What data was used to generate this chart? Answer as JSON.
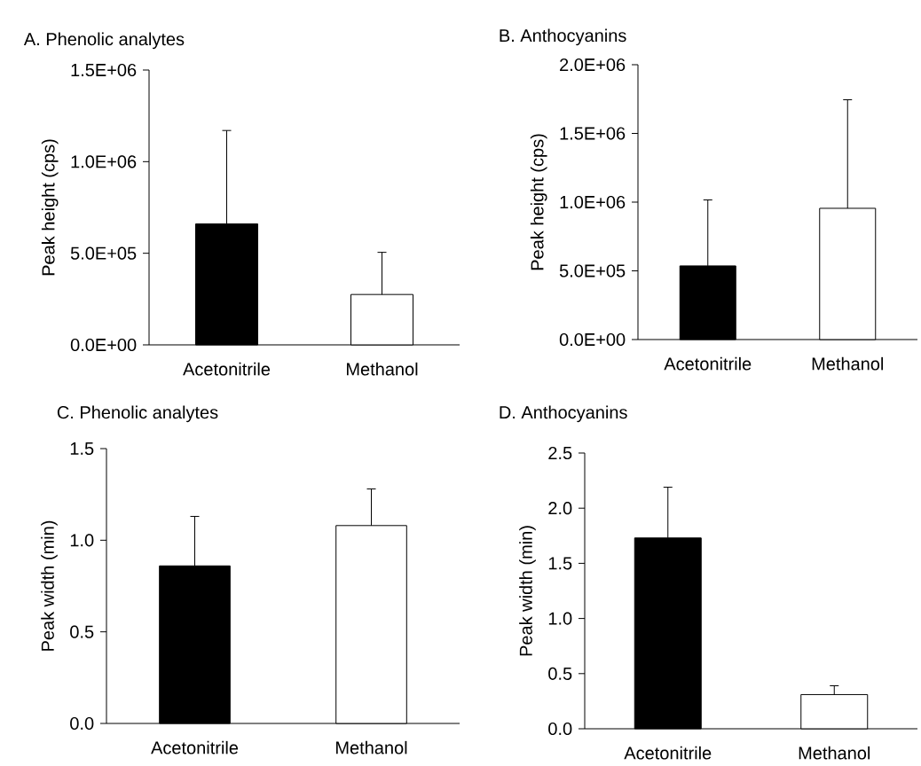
{
  "chart_data": [
    {
      "type": "bar",
      "title": "A. Phenolic analytes",
      "ylabel": "Peak height (cps)",
      "categories": [
        "Acetonitrile",
        "Methanol"
      ],
      "values": [
        660000,
        275000
      ],
      "colors": [
        "#000000",
        "#ffffff"
      ],
      "errors": [
        510000,
        230000
      ],
      "ylim": [
        0,
        1500000
      ],
      "yticks": [
        {
          "value": 0,
          "label": "0.0E+00"
        },
        {
          "value": 500000,
          "label": "5.0E+05"
        },
        {
          "value": 1000000,
          "label": "1.0E+06"
        },
        {
          "value": 1500000,
          "label": "1.5E+06"
        }
      ]
    },
    {
      "type": "bar",
      "title": "B. Anthocyanins",
      "ylabel": "Peak height (cps)",
      "categories": [
        "Acetonitrile",
        "Methanol"
      ],
      "values": [
        536000,
        955000
      ],
      "colors": [
        "#000000",
        "#ffffff"
      ],
      "errors": [
        480000,
        790000
      ],
      "ylim": [
        0,
        2000000
      ],
      "yticks": [
        {
          "value": 0,
          "label": "0.0E+00"
        },
        {
          "value": 500000,
          "label": "5.0E+05"
        },
        {
          "value": 1000000,
          "label": "1.0E+06"
        },
        {
          "value": 1500000,
          "label": "1.5E+06"
        },
        {
          "value": 2000000,
          "label": "2.0E+06"
        }
      ]
    },
    {
      "type": "bar",
      "title": "C. Phenolic analytes",
      "ylabel": "Peak width (min)",
      "categories": [
        "Acetonitrile",
        "Methanol"
      ],
      "values": [
        0.86,
        1.08
      ],
      "colors": [
        "#000000",
        "#ffffff"
      ],
      "errors": [
        0.27,
        0.2
      ],
      "ylim": [
        0,
        1.5
      ],
      "yticks": [
        {
          "value": 0,
          "label": "0.0"
        },
        {
          "value": 0.5,
          "label": "0.5"
        },
        {
          "value": 1,
          "label": "1.0"
        },
        {
          "value": 1.5,
          "label": "1.5"
        }
      ]
    },
    {
      "type": "bar",
      "title": "D. Anthocyanins",
      "ylabel": "Peak width (min)",
      "categories": [
        "Acetonitrile",
        "Methanol"
      ],
      "values": [
        1.73,
        0.31
      ],
      "colors": [
        "#000000",
        "#ffffff"
      ],
      "errors": [
        0.46,
        0.08
      ],
      "ylim": [
        0,
        2.5
      ],
      "yticks": [
        {
          "value": 0,
          "label": "0.0"
        },
        {
          "value": 0.5,
          "label": "0.5"
        },
        {
          "value": 1,
          "label": "1.0"
        },
        {
          "value": 1.5,
          "label": "1.5"
        },
        {
          "value": 2,
          "label": "2.0"
        },
        {
          "value": 2.5,
          "label": "2.5"
        }
      ]
    }
  ]
}
